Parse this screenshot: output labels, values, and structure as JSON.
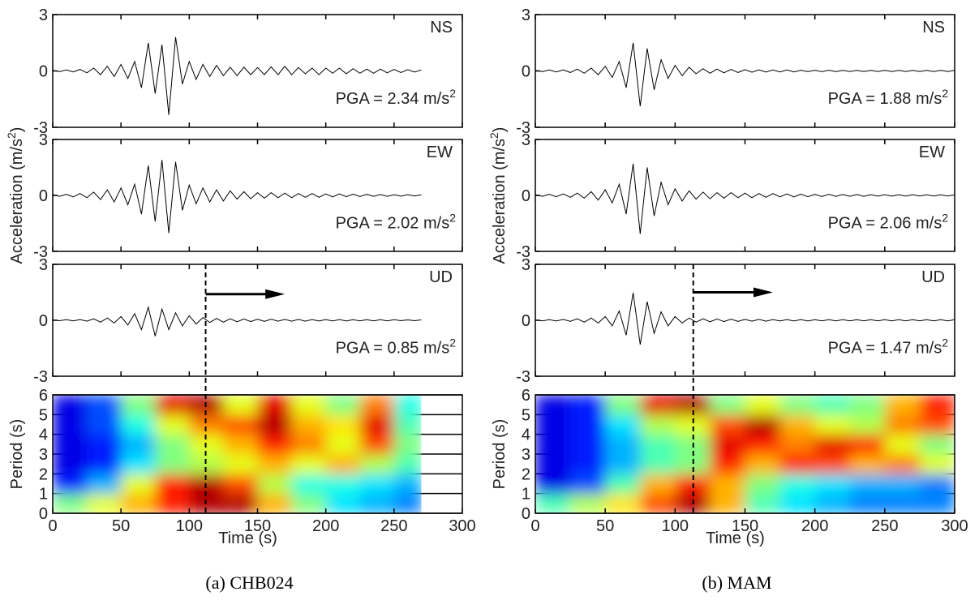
{
  "chart_data": [
    {
      "type": "line",
      "caption": "(a) CHB024",
      "ylabel": [
        "Acceleration (m/s",
        "2",
        ")"
      ],
      "xlabel": "Time (s)",
      "xlim": [
        0,
        300
      ],
      "xticks": [
        0,
        50,
        100,
        150,
        200,
        250,
        300
      ],
      "x": [
        0,
        5,
        10,
        15,
        20,
        25,
        30,
        35,
        40,
        45,
        50,
        55,
        60,
        65,
        70,
        75,
        80,
        85,
        90,
        95,
        100,
        105,
        110,
        115,
        120,
        125,
        130,
        135,
        140,
        145,
        150,
        155,
        160,
        165,
        170,
        175,
        180,
        185,
        190,
        195,
        200,
        205,
        210,
        215,
        220,
        225,
        230,
        235,
        240,
        245,
        250,
        255,
        260,
        265,
        270
      ],
      "traces": [
        {
          "name": "NS",
          "color": "#000000",
          "ylim": [
            -3,
            3
          ],
          "yticks": [
            -3,
            0,
            3
          ],
          "pga_label": [
            "PGA = 2.34 m/s",
            "2"
          ],
          "values": [
            0.03,
            -0.04,
            0.05,
            -0.05,
            0.08,
            -0.1,
            0.15,
            -0.2,
            0.25,
            -0.3,
            0.35,
            -0.4,
            0.5,
            -0.9,
            1.5,
            -1.2,
            1.4,
            -2.34,
            1.8,
            -0.7,
            0.5,
            -0.45,
            0.35,
            -0.3,
            0.3,
            -0.25,
            0.2,
            -0.25,
            0.2,
            -0.2,
            0.18,
            -0.2,
            0.22,
            -0.2,
            0.25,
            -0.2,
            0.18,
            -0.15,
            0.15,
            -0.2,
            0.15,
            -0.12,
            0.15,
            -0.15,
            0.12,
            -0.12,
            0.1,
            -0.12,
            0.1,
            -0.1,
            0.08,
            -0.08,
            0.07,
            -0.06,
            0.05
          ]
        },
        {
          "name": "EW",
          "color": "#000000",
          "ylim": [
            -3,
            3
          ],
          "yticks": [
            -3,
            0,
            3
          ],
          "pga_label": [
            "PGA = 2.02 m/s",
            "2"
          ],
          "values": [
            0.04,
            -0.05,
            0.06,
            -0.08,
            0.1,
            -0.12,
            0.18,
            -0.22,
            0.3,
            -0.35,
            0.4,
            -0.5,
            0.6,
            -1.0,
            1.6,
            -1.4,
            1.9,
            -2.02,
            1.8,
            -0.8,
            0.55,
            -0.45,
            0.4,
            -0.35,
            0.3,
            -0.3,
            0.25,
            -0.2,
            0.2,
            -0.18,
            0.15,
            -0.15,
            0.15,
            -0.12,
            0.12,
            -0.12,
            0.1,
            -0.1,
            0.1,
            -0.1,
            0.08,
            -0.08,
            0.08,
            -0.07,
            0.07,
            -0.06,
            0.06,
            -0.05,
            0.05,
            -0.05,
            0.04,
            -0.04,
            0.04,
            -0.03,
            0.03
          ]
        },
        {
          "name": "UD",
          "color": "#000000",
          "ylim": [
            -3,
            3
          ],
          "yticks": [
            -3,
            0,
            3
          ],
          "pga_label": [
            "PGA = 0.85 m/s",
            "2"
          ],
          "values": [
            0.02,
            -0.02,
            0.03,
            -0.03,
            0.04,
            -0.05,
            0.08,
            -0.1,
            0.12,
            -0.15,
            0.2,
            -0.25,
            0.35,
            -0.5,
            0.7,
            -0.85,
            0.6,
            -0.5,
            0.4,
            -0.3,
            0.25,
            -0.2,
            0.15,
            -0.12,
            0.1,
            -0.1,
            0.08,
            -0.08,
            0.07,
            -0.07,
            0.06,
            -0.06,
            0.06,
            -0.05,
            0.05,
            -0.05,
            0.05,
            -0.05,
            0.04,
            -0.04,
            0.04,
            -0.04,
            0.04,
            -0.04,
            0.03,
            -0.03,
            0.03,
            -0.03,
            0.03,
            -0.03,
            0.03,
            -0.02,
            0.02,
            -0.02,
            0.02
          ]
        }
      ],
      "marker": {
        "x": 112,
        "arrow_end": 170,
        "arrow_y": 1.4
      },
      "spectrogram": {
        "type": "heatmap",
        "ylabel": "Period (s)",
        "ylim": [
          0,
          6
        ],
        "yticks": [
          0,
          1,
          2,
          3,
          4,
          5,
          6
        ],
        "grid": true,
        "colormap": "jet",
        "x_edges": [
          0,
          25,
          50,
          75,
          100,
          125,
          150,
          175,
          200,
          225,
          250,
          270
        ],
        "y_edges": [
          0,
          1,
          2,
          3,
          4,
          5,
          6
        ],
        "z": [
          [
            0.5,
            0.6,
            0.7,
            0.85,
            0.95,
            0.95,
            0.7,
            0.5,
            0.35,
            0.3,
            0.25
          ],
          [
            0.15,
            0.3,
            0.6,
            0.85,
            0.95,
            0.8,
            0.55,
            0.4,
            0.4,
            0.35,
            0.3
          ],
          [
            0.1,
            0.15,
            0.35,
            0.5,
            0.55,
            0.6,
            0.7,
            0.6,
            0.7,
            0.55,
            0.45
          ],
          [
            0.1,
            0.15,
            0.3,
            0.5,
            0.6,
            0.7,
            0.85,
            0.75,
            0.6,
            0.8,
            0.5
          ],
          [
            0.1,
            0.2,
            0.4,
            0.6,
            0.75,
            0.8,
            0.95,
            0.7,
            0.65,
            0.9,
            0.45
          ],
          [
            0.1,
            0.2,
            0.5,
            0.9,
            0.95,
            0.6,
            0.9,
            0.6,
            0.5,
            0.75,
            0.4
          ]
        ]
      }
    },
    {
      "type": "line",
      "caption": "(b) MAM",
      "ylabel": [
        "Acceleration (m/s",
        "2",
        ")"
      ],
      "xlabel": "Time (s)",
      "xlim": [
        0,
        300
      ],
      "xticks": [
        0,
        50,
        100,
        150,
        200,
        250,
        300
      ],
      "x": [
        0,
        5,
        10,
        15,
        20,
        25,
        30,
        35,
        40,
        45,
        50,
        55,
        60,
        65,
        70,
        75,
        80,
        85,
        90,
        95,
        100,
        105,
        110,
        115,
        120,
        125,
        130,
        135,
        140,
        145,
        150,
        155,
        160,
        165,
        170,
        175,
        180,
        185,
        190,
        195,
        200,
        205,
        210,
        215,
        220,
        225,
        230,
        235,
        240,
        245,
        250,
        255,
        260,
        265,
        270,
        275,
        280,
        285,
        290,
        295,
        300
      ],
      "traces": [
        {
          "name": "NS",
          "color": "#000000",
          "ylim": [
            -3,
            3
          ],
          "yticks": [
            -3,
            0,
            3
          ],
          "pga_label": [
            "PGA = 1.88 m/s",
            "2"
          ],
          "values": [
            0.03,
            -0.04,
            0.05,
            -0.05,
            0.06,
            -0.08,
            0.1,
            -0.12,
            0.15,
            -0.2,
            0.25,
            -0.35,
            0.5,
            -0.9,
            1.5,
            -1.88,
            1.2,
            -1.0,
            0.6,
            -0.4,
            0.3,
            -0.25,
            0.2,
            -0.15,
            0.12,
            -0.12,
            0.1,
            -0.1,
            0.08,
            -0.08,
            0.07,
            -0.07,
            0.06,
            -0.06,
            0.05,
            -0.05,
            0.05,
            -0.05,
            0.04,
            -0.04,
            0.04,
            -0.04,
            0.04,
            -0.04,
            0.03,
            -0.03,
            0.03,
            -0.03,
            0.03,
            -0.03,
            0.03,
            -0.03,
            0.03,
            -0.03,
            0.03,
            -0.03,
            0.03,
            -0.03,
            0.03,
            -0.03,
            0.03
          ]
        },
        {
          "name": "EW",
          "color": "#000000",
          "ylim": [
            -3,
            3
          ],
          "yticks": [
            -3,
            0,
            3
          ],
          "pga_label": [
            "PGA = 2.06 m/s",
            "2"
          ],
          "values": [
            0.04,
            -0.05,
            0.06,
            -0.07,
            0.08,
            -0.1,
            0.12,
            -0.15,
            0.2,
            -0.25,
            0.3,
            -0.4,
            0.6,
            -1.0,
            1.7,
            -2.06,
            1.5,
            -1.1,
            0.7,
            -0.5,
            0.35,
            -0.3,
            0.25,
            -0.2,
            0.18,
            -0.18,
            0.15,
            -0.15,
            0.15,
            -0.12,
            0.12,
            -0.12,
            0.1,
            -0.1,
            0.1,
            -0.08,
            0.08,
            -0.08,
            0.07,
            -0.07,
            0.06,
            -0.06,
            0.06,
            -0.05,
            0.05,
            -0.05,
            0.05,
            -0.05,
            0.04,
            -0.04,
            0.04,
            -0.04,
            0.04,
            -0.04,
            0.04,
            -0.03,
            0.03,
            -0.03,
            0.03,
            -0.03,
            0.03
          ]
        },
        {
          "name": "UD",
          "color": "#000000",
          "ylim": [
            -3,
            3
          ],
          "yticks": [
            -3,
            0,
            3
          ],
          "pga_label": [
            "PGA = 1.47 m/s",
            "2"
          ],
          "values": [
            0.02,
            -0.03,
            0.03,
            -0.04,
            0.05,
            -0.06,
            0.08,
            -0.1,
            0.12,
            -0.15,
            0.2,
            -0.3,
            0.5,
            -0.8,
            1.47,
            -1.3,
            1.0,
            -0.7,
            0.45,
            -0.3,
            0.2,
            -0.15,
            0.12,
            -0.1,
            0.08,
            -0.08,
            0.07,
            -0.07,
            0.06,
            -0.06,
            0.05,
            -0.05,
            0.05,
            -0.05,
            0.04,
            -0.04,
            0.04,
            -0.04,
            0.04,
            -0.04,
            0.03,
            -0.03,
            0.03,
            -0.03,
            0.03,
            -0.03,
            0.03,
            -0.03,
            0.03,
            -0.03,
            0.03,
            -0.03,
            0.03,
            -0.03,
            0.03,
            -0.03,
            0.03,
            -0.03,
            0.03,
            -0.03,
            0.03
          ]
        }
      ],
      "marker": {
        "x": 113,
        "arrow_end": 170,
        "arrow_y": 1.5
      },
      "spectrogram": {
        "type": "heatmap",
        "ylabel": "Period (s)",
        "ylim": [
          0,
          6
        ],
        "yticks": [
          0,
          1,
          2,
          3,
          4,
          5,
          6
        ],
        "grid": true,
        "colormap": "jet",
        "x_edges": [
          0,
          25,
          50,
          75,
          100,
          125,
          150,
          175,
          200,
          225,
          250,
          275,
          300
        ],
        "y_edges": [
          0,
          1,
          2,
          3,
          4,
          5,
          6
        ],
        "z": [
          [
            0.45,
            0.55,
            0.65,
            0.8,
            0.95,
            0.7,
            0.45,
            0.35,
            0.3,
            0.25,
            0.25,
            0.25
          ],
          [
            0.1,
            0.2,
            0.45,
            0.7,
            0.85,
            0.7,
            0.5,
            0.4,
            0.35,
            0.3,
            0.3,
            0.25
          ],
          [
            0.1,
            0.15,
            0.3,
            0.45,
            0.5,
            0.85,
            0.7,
            0.85,
            0.8,
            0.7,
            0.75,
            0.6
          ],
          [
            0.1,
            0.15,
            0.3,
            0.45,
            0.5,
            0.9,
            0.85,
            0.75,
            0.9,
            0.85,
            0.6,
            0.5
          ],
          [
            0.1,
            0.15,
            0.35,
            0.55,
            0.6,
            0.8,
            0.95,
            0.7,
            0.6,
            0.55,
            0.75,
            0.8
          ],
          [
            0.1,
            0.15,
            0.5,
            0.9,
            0.95,
            0.5,
            0.6,
            0.5,
            0.45,
            0.5,
            0.7,
            0.85
          ]
        ]
      }
    }
  ]
}
